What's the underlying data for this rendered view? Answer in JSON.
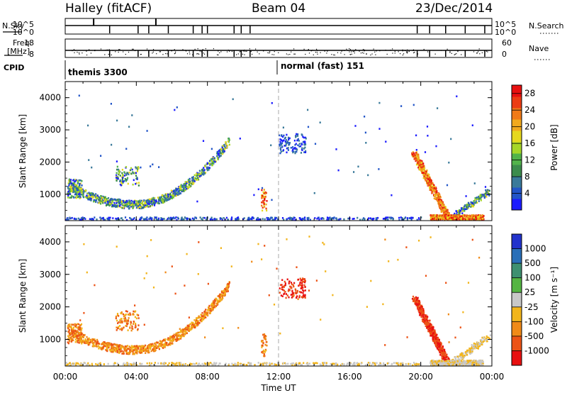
{
  "header": {
    "site_title": "Halley (fitACF)",
    "beam": "Beam 04",
    "date": "23/Dec/2014"
  },
  "strips": {
    "nsky_label": "N.Sky",
    "nsky_ticks": [
      "10^5",
      "10^0"
    ],
    "nsearch_label": "N.Search",
    "nsearch_ticks": [
      "10^5",
      "10^0"
    ],
    "freq_label_1": "Freq.",
    "freq_label_2": "[MHz]",
    "freq_ticks": [
      "18",
      "8"
    ],
    "nave_label": "Nave",
    "nave_ticks": [
      "60",
      "0"
    ],
    "cpid_label": "CPID",
    "cpid_segments": [
      {
        "label": "themis 3300",
        "start_hour": 0
      },
      {
        "label": "normal (fast) 151",
        "start_hour": 12
      }
    ]
  },
  "chart_data": [
    {
      "type": "heatmap",
      "title": "",
      "xlabel": "Time UT",
      "ylabel": "Slant Range [km]",
      "xlim": [
        0,
        24
      ],
      "ylim": [
        180,
        4500
      ],
      "x_ticks": [
        "00:00",
        "04:00",
        "08:00",
        "12:00",
        "16:00",
        "20:00",
        "00:00"
      ],
      "y_ticks": [
        1000,
        2000,
        3000,
        4000
      ],
      "colorbar": {
        "label": "Power [dB]",
        "range": [
          0,
          30
        ],
        "ticks": [
          4,
          8,
          12,
          16,
          20,
          24,
          28
        ],
        "colors": [
          "#1c1cff",
          "#2255c8",
          "#3a7a9a",
          "#3c8c4c",
          "#52b34a",
          "#a6d628",
          "#e6d81e",
          "#f1a91d",
          "#f07a18",
          "#ec3c14",
          "#e81010"
        ]
      },
      "reference_line": {
        "x": 12,
        "style": "dashed"
      },
      "features": [
        {
          "name": "arc-04h",
          "t_start": 0.3,
          "t_end": 9.2,
          "range_start": 1200,
          "range_min": 700,
          "range_end": 2600,
          "level": "low-mid"
        },
        {
          "name": "patch-13h",
          "t_start": 11.8,
          "t_end": 13.5,
          "range_start": 2300,
          "range_end": 2900,
          "level": "low"
        },
        {
          "name": "streak-20h",
          "t_start": 19.6,
          "t_end": 21.5,
          "range_start": 2300,
          "range_end": 300,
          "level": "high"
        },
        {
          "name": "ground-scatter-21h",
          "t_start": 20.5,
          "t_end": 23.5,
          "range_start": 250,
          "range_end": 250,
          "level": "high"
        }
      ]
    },
    {
      "type": "heatmap",
      "title": "",
      "xlabel": "Time UT",
      "ylabel": "Slant Range [km]",
      "xlim": [
        0,
        24
      ],
      "ylim": [
        180,
        4500
      ],
      "x_ticks": [
        "00:00",
        "04:00",
        "08:00",
        "12:00",
        "16:00",
        "20:00",
        "00:00"
      ],
      "y_ticks": [
        1000,
        2000,
        3000,
        4000
      ],
      "colorbar": {
        "label": "Velocity [m s⁻¹]",
        "ticks": [
          1000,
          500,
          100,
          25,
          -25,
          -100,
          -500,
          -1000
        ],
        "colors": [
          "#2233cc",
          "#2a6fb8",
          "#3e9070",
          "#55b543",
          "#c8c8c8",
          "#f2b51c",
          "#f08a18",
          "#ec5316",
          "#e81010"
        ]
      },
      "reference_line": {
        "x": 12,
        "style": "dashed"
      },
      "features": [
        {
          "name": "arc-04h",
          "t_start": 0.3,
          "t_end": 9.2,
          "range_start": 1200,
          "range_min": 700,
          "range_end": 2600,
          "velocity": "negative"
        },
        {
          "name": "patch-13h",
          "t_start": 11.8,
          "t_end": 13.5,
          "range_start": 2300,
          "range_end": 2900,
          "velocity": "strong-negative"
        },
        {
          "name": "streak-20h",
          "t_start": 19.6,
          "t_end": 21.5,
          "range_start": 2300,
          "range_end": 300,
          "velocity": "strong-negative"
        },
        {
          "name": "ground-scatter-21h",
          "t_start": 20.5,
          "t_end": 23.5,
          "range_start": 250,
          "range_end": 250,
          "velocity": "near-zero"
        }
      ]
    }
  ]
}
